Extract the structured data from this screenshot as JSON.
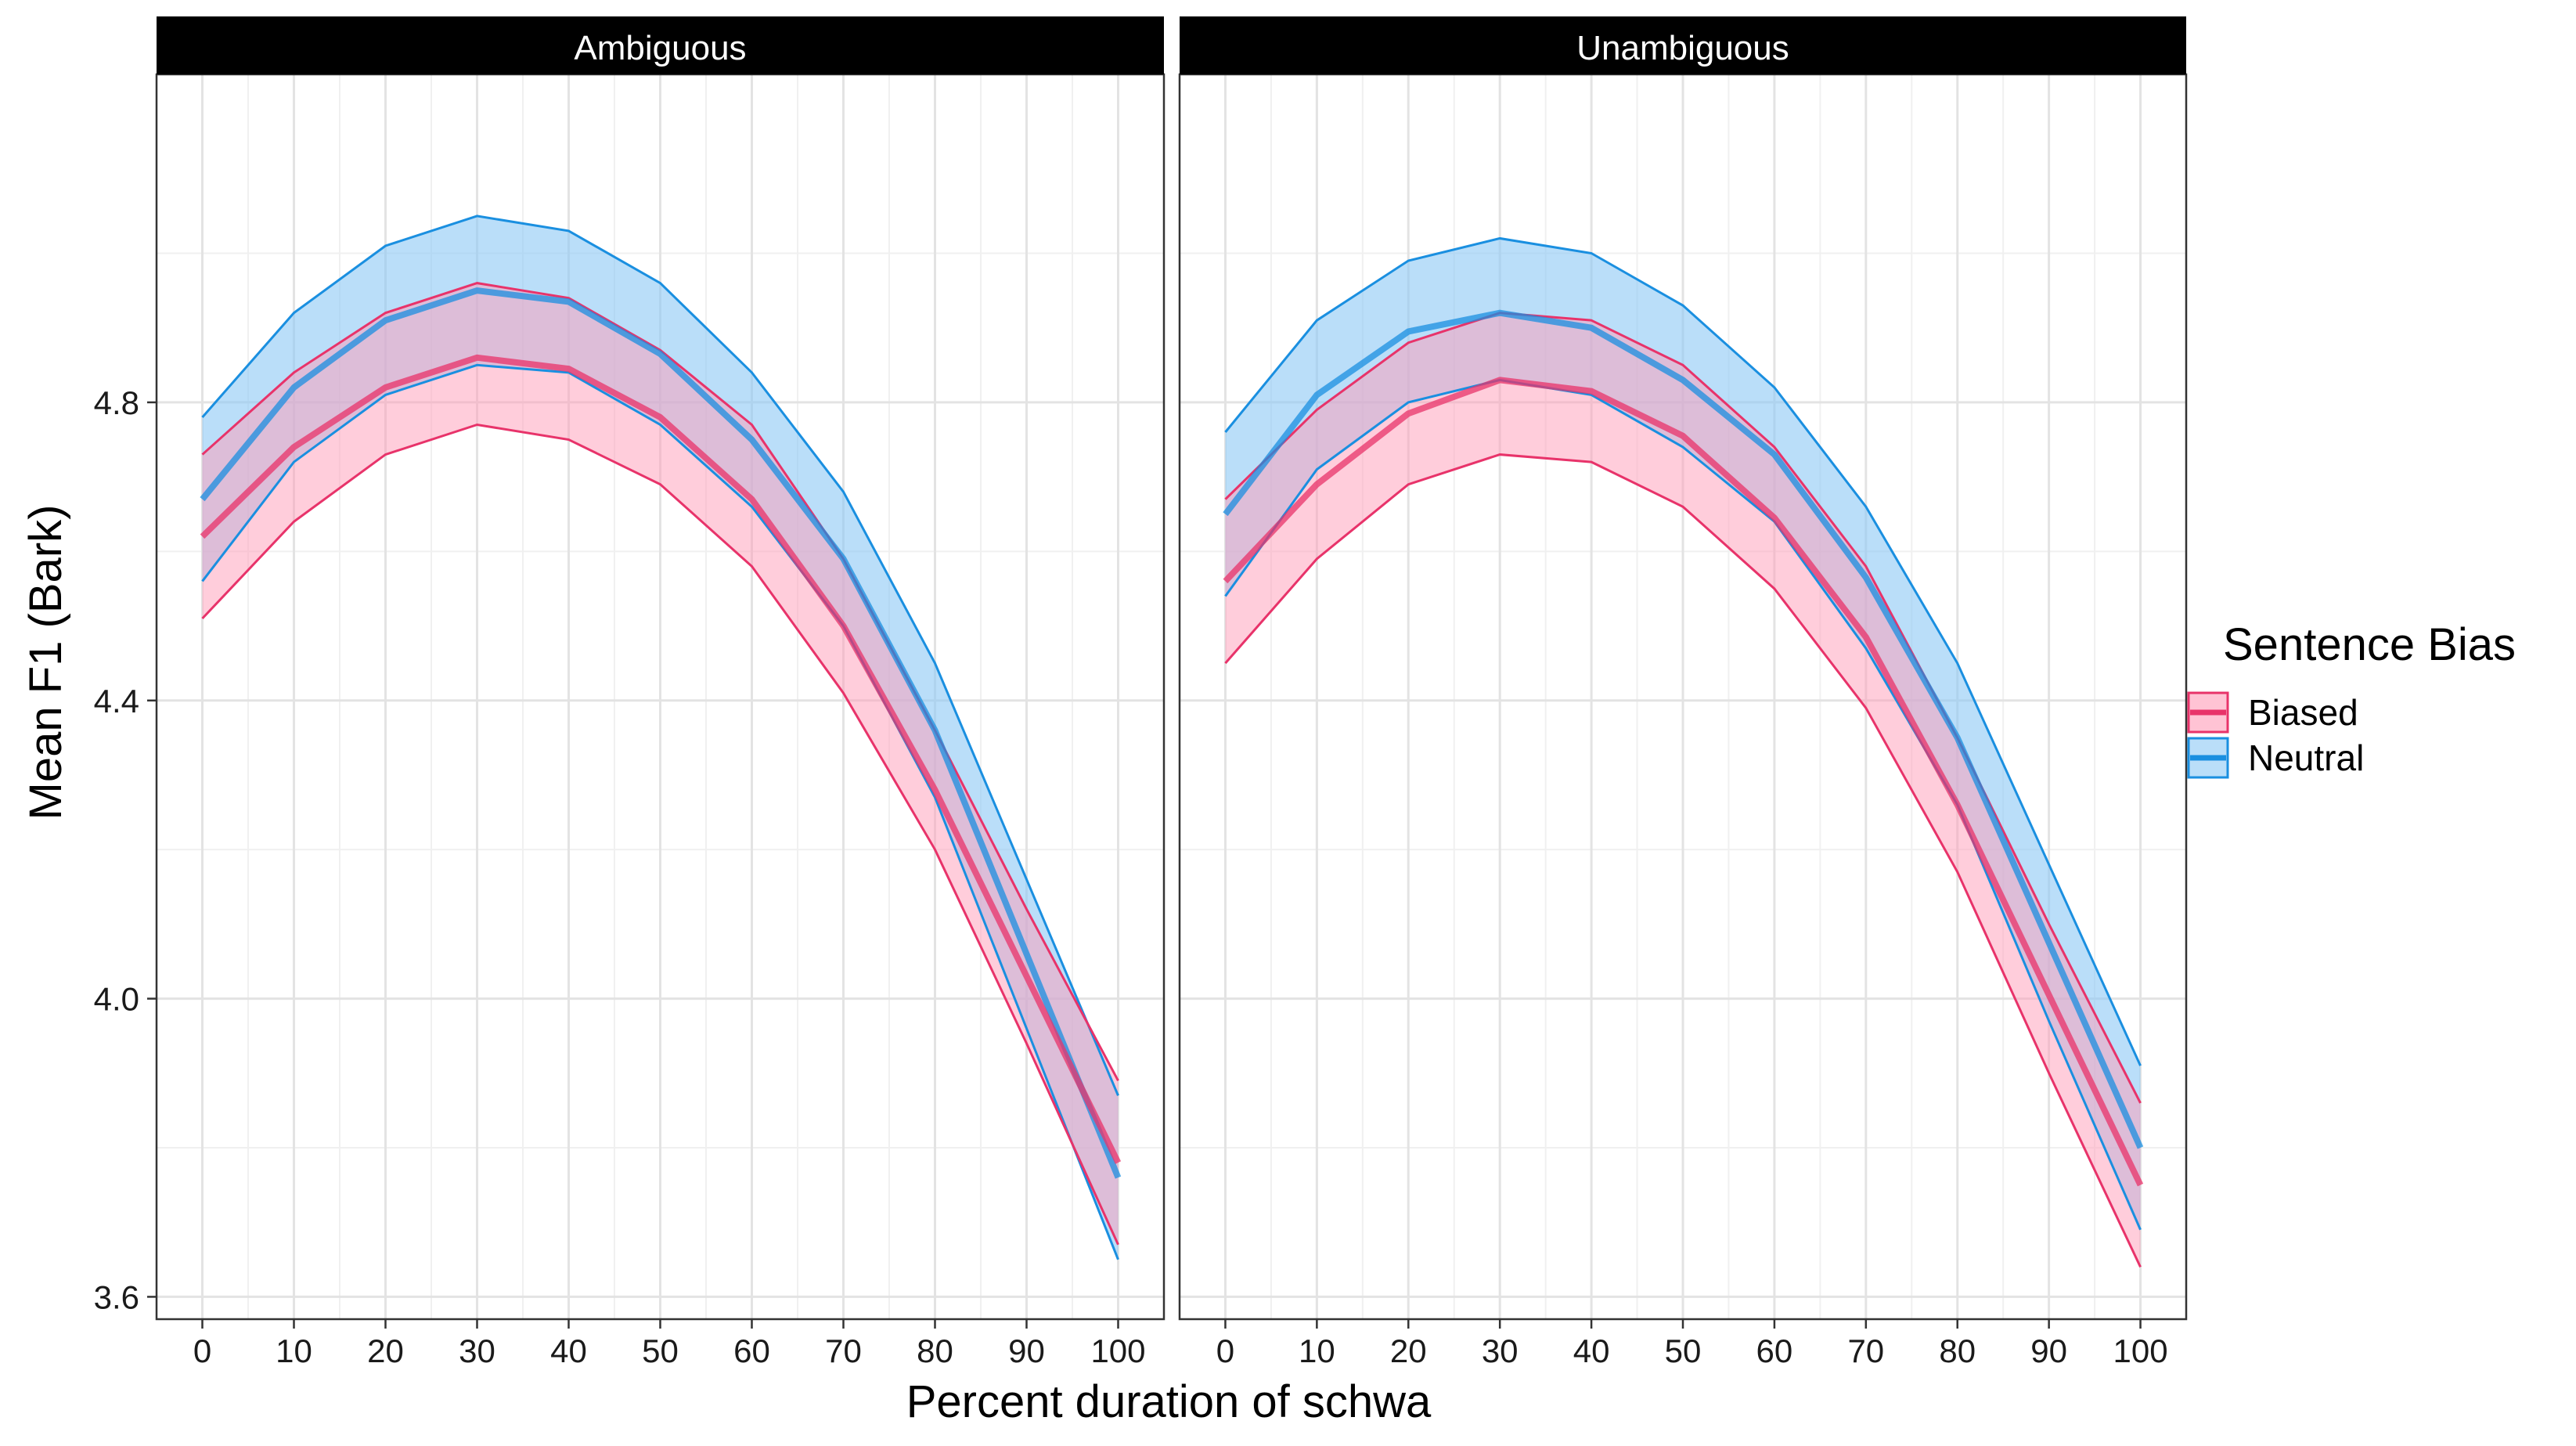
{
  "chart_data": {
    "type": "area",
    "xlabel": "Percent duration of schwa",
    "ylabel": "Mean F1 (Bark)",
    "x": [
      0,
      10,
      20,
      30,
      40,
      50,
      60,
      70,
      80,
      90,
      100
    ],
    "x_ticks": [
      "0",
      "10",
      "20",
      "30",
      "40",
      "50",
      "60",
      "70",
      "80",
      "90",
      "100"
    ],
    "y_ticks": [
      "3.6",
      "4.0",
      "4.4",
      "4.8"
    ],
    "xlim": [
      -5,
      105
    ],
    "ylim": [
      3.57,
      5.24
    ],
    "grid": true,
    "legend": {
      "title": "Sentence Bias",
      "position": "right",
      "entries": [
        "Biased",
        "Neutral"
      ]
    },
    "series_colors": {
      "Biased": {
        "line": "#E8336A",
        "fill": "#FF9BB8"
      },
      "Neutral": {
        "line": "#1A8FE0",
        "fill": "#8CC8F5"
      }
    },
    "panels": [
      {
        "strip": "Ambiguous",
        "series": [
          {
            "name": "Biased",
            "upper": [
              4.73,
              4.84,
              4.92,
              4.96,
              4.94,
              4.87,
              4.77,
              4.59,
              4.36,
              4.12,
              3.89
            ],
            "mean": [
              4.62,
              4.74,
              4.82,
              4.86,
              4.845,
              4.78,
              4.67,
              4.5,
              4.28,
              4.03,
              3.78
            ],
            "lower": [
              4.51,
              4.64,
              4.73,
              4.77,
              4.75,
              4.69,
              4.58,
              4.41,
              4.2,
              3.94,
              3.67
            ]
          },
          {
            "name": "Neutral",
            "upper": [
              4.78,
              4.92,
              5.01,
              5.05,
              5.03,
              4.96,
              4.84,
              4.68,
              4.45,
              4.16,
              3.87
            ],
            "mean": [
              4.67,
              4.82,
              4.91,
              4.95,
              4.935,
              4.865,
              4.75,
              4.59,
              4.36,
              4.06,
              3.76
            ],
            "lower": [
              4.56,
              4.72,
              4.81,
              4.85,
              4.84,
              4.77,
              4.66,
              4.5,
              4.27,
              3.96,
              3.65
            ]
          }
        ]
      },
      {
        "strip": "Unambiguous",
        "series": [
          {
            "name": "Biased",
            "upper": [
              4.67,
              4.79,
              4.88,
              4.92,
              4.91,
              4.85,
              4.74,
              4.58,
              4.35,
              4.1,
              3.86
            ],
            "mean": [
              4.56,
              4.69,
              4.785,
              4.83,
              4.815,
              4.755,
              4.645,
              4.485,
              4.26,
              4.005,
              3.75
            ],
            "lower": [
              4.45,
              4.59,
              4.69,
              4.73,
              4.72,
              4.66,
              4.55,
              4.39,
              4.17,
              3.9,
              3.64
            ]
          },
          {
            "name": "Neutral",
            "upper": [
              4.76,
              4.91,
              4.99,
              5.02,
              5.0,
              4.93,
              4.82,
              4.66,
              4.45,
              4.18,
              3.91
            ],
            "mean": [
              4.65,
              4.81,
              4.895,
              4.92,
              4.9,
              4.83,
              4.73,
              4.565,
              4.35,
              4.075,
              3.8
            ],
            "lower": [
              4.54,
              4.71,
              4.8,
              4.83,
              4.81,
              4.74,
              4.64,
              4.47,
              4.26,
              3.97,
              3.69
            ]
          }
        ]
      }
    ]
  }
}
